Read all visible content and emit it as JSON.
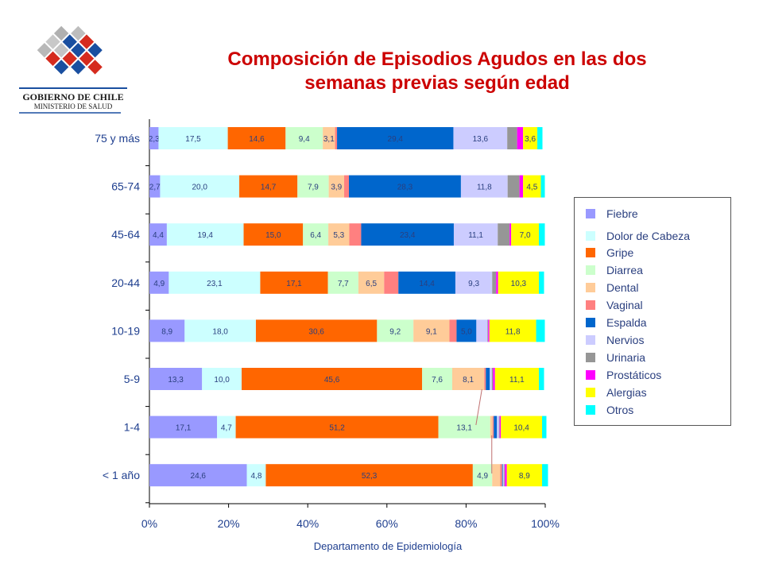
{
  "header": {
    "title_line1": "Composición de Episodios Agudos en las dos",
    "title_line2": "semanas previas según edad"
  },
  "logo": {
    "text_line1": "GOBIERNO DE CHILE",
    "text_line2": "MINISTERIO DE SALUD",
    "colors": {
      "red": "#d52b1e",
      "blue": "#1a4fa0",
      "gray": "#b8b8b8"
    }
  },
  "footer": {
    "label": "Departamento de Epidemiología"
  },
  "chart_data": {
    "type": "bar",
    "orientation": "horizontal",
    "stacked": "percent",
    "title": "Composición de Episodios Agudos en las dos semanas previas según edad",
    "xlim": [
      0,
      100
    ],
    "x_ticks": [
      "0%",
      "20%",
      "40%",
      "60%",
      "80%",
      "100%"
    ],
    "legend_position": "right",
    "categories": [
      "75 y más",
      "65-74",
      "45-64",
      "20-44",
      "10-19",
      "5-9",
      "1-4",
      "< 1 año"
    ],
    "series": [
      {
        "name": "Fiebre",
        "color": "#9999ff",
        "values": [
          2.3,
          2.7,
          4.4,
          4.9,
          8.9,
          13.3,
          17.1,
          24.6
        ]
      },
      {
        "name": "Dolor de Cabeza",
        "color": "#ccffff",
        "values": [
          17.5,
          20.0,
          19.4,
          23.1,
          18.0,
          10.0,
          4.7,
          4.8
        ]
      },
      {
        "name": "Gripe",
        "color": "#ff6600",
        "values": [
          14.6,
          14.7,
          15.0,
          17.1,
          30.6,
          45.6,
          51.2,
          52.3
        ]
      },
      {
        "name": "Diarrea",
        "color": "#ccffcc",
        "values": [
          9.4,
          7.9,
          6.4,
          7.7,
          9.2,
          7.6,
          13.1,
          4.9
        ]
      },
      {
        "name": "Dental",
        "color": "#ffcc99",
        "values": [
          3.1,
          3.9,
          5.3,
          6.5,
          9.1,
          8.1,
          0.6,
          2.0
        ]
      },
      {
        "name": "Vaginal",
        "color": "#ff8080",
        "values": [
          0.5,
          1.2,
          3.0,
          3.6,
          1.8,
          0.4,
          0.3,
          0.5
        ]
      },
      {
        "name": "Espalda",
        "color": "#0066cc",
        "values": [
          29.4,
          28.3,
          23.4,
          14.4,
          5.0,
          1.0,
          0.8,
          0.2
        ]
      },
      {
        "name": "Nervios",
        "color": "#ccccff",
        "values": [
          13.6,
          11.8,
          11.1,
          9.3,
          2.8,
          0.5,
          0.5,
          0.3
        ]
      },
      {
        "name": "Urinaria",
        "color": "#969696",
        "values": [
          2.5,
          3.0,
          3.0,
          1.0,
          0.2,
          0.3,
          0.2,
          0.2
        ]
      },
      {
        "name": "Prostáticos",
        "color": "#ff00ff",
        "values": [
          1.5,
          0.9,
          0.4,
          0.5,
          0.3,
          0.5,
          0.3,
          0.5
        ]
      },
      {
        "name": "Alergias",
        "color": "#ffff00",
        "values": [
          3.6,
          4.5,
          7.0,
          10.3,
          11.8,
          11.1,
          10.4,
          8.9
        ]
      },
      {
        "name": "Otros",
        "color": "#00ffff",
        "values": [
          1.3,
          1.0,
          1.5,
          1.3,
          2.2,
          1.3,
          1.1,
          1.5
        ]
      }
    ],
    "data_labels": [
      [
        "2,3",
        "17,5",
        "14,6",
        "9,4",
        "3,1",
        "",
        "29,4",
        "13,6",
        "",
        "",
        "3,6",
        ""
      ],
      [
        "2,7",
        "20,0",
        "14,7",
        "7,9",
        "3,9",
        "",
        "28,3",
        "11,8",
        "",
        "",
        "4,5",
        ""
      ],
      [
        "4,4",
        "19,4",
        "15,0",
        "6,4",
        "5,3",
        "",
        "23,4",
        "11,1",
        "",
        "",
        "7,0",
        ""
      ],
      [
        "4,9",
        "23,1",
        "17,1",
        "7,7",
        "6,5",
        "",
        "14,4",
        "9,3",
        "",
        "",
        "10,3",
        ""
      ],
      [
        "8,9",
        "18,0",
        "30,6",
        "9,2",
        "9,1",
        "",
        "5,0",
        "",
        "",
        "",
        "11,8",
        ""
      ],
      [
        "13,3",
        "10,0",
        "45,6",
        "7,6",
        "8,1",
        "",
        "",
        "",
        "",
        "",
        "11,1",
        ""
      ],
      [
        "17,1",
        "4,7",
        "51,2",
        "13,1",
        "",
        "",
        "",
        "",
        "",
        "",
        "10,4",
        ""
      ],
      [
        "24,6",
        "4,8",
        "52,3",
        "4,9",
        "",
        "",
        "",
        "",
        "",
        "",
        "8,9",
        ""
      ]
    ]
  }
}
